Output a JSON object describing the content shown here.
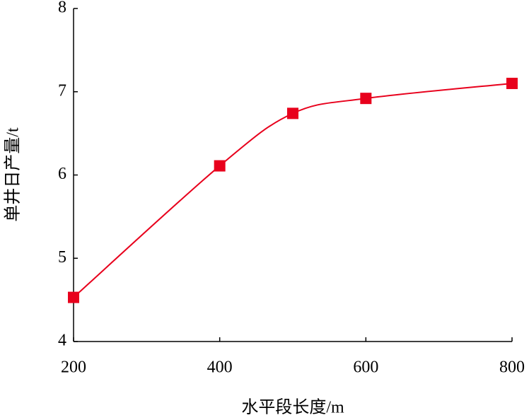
{
  "chart_data": {
    "type": "line",
    "x_label": "水平段长度/m",
    "y_label": "单井日产量/t",
    "x": [
      200,
      400,
      500,
      600,
      800
    ],
    "series": [
      {
        "color": "#e8001c",
        "values": [
          4.53,
          6.11,
          6.74,
          6.92,
          7.1
        ]
      }
    ],
    "xlim": [
      200,
      800
    ],
    "xticks": [
      200,
      400,
      600,
      800
    ],
    "ylim": [
      4,
      8
    ],
    "yticks": [
      4,
      5,
      6,
      7,
      8
    ],
    "grid": false,
    "smooth": true,
    "marker": "square"
  }
}
